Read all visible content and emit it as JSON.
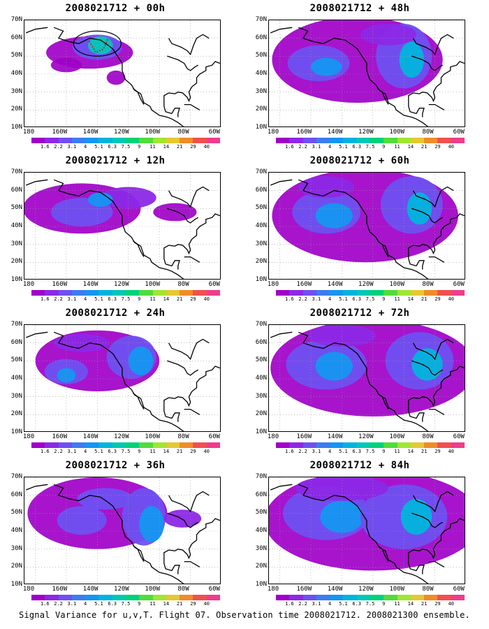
{
  "caption": "Signal Variance for u,v,T. Flight 07. Observation time 2008021712. 2008021300 ensemble.",
  "y_labels": [
    "70N",
    "60N",
    "50N",
    "40N",
    "30N",
    "20N",
    "10N"
  ],
  "x_labels": [
    "180",
    "160W",
    "140W",
    "120W",
    "100W",
    "80W",
    "60W"
  ],
  "colorbar_levels": [
    "1.6",
    "2.2",
    "3.1",
    "4",
    "5.1",
    "6.3",
    "7.5",
    "9",
    "11",
    "14",
    "21",
    "29",
    "40"
  ],
  "colorbar_colors": [
    "#a000c8",
    "#8c28e6",
    "#6e50f0",
    "#3c7cf0",
    "#1496f0",
    "#00b4dc",
    "#00c8b4",
    "#00d278",
    "#50dc3c",
    "#a0e632",
    "#e6c832",
    "#f08c28",
    "#f05050",
    "#f03c8c"
  ],
  "map_style": {
    "grid": "dotted",
    "coastlines": true
  },
  "panels": [
    {
      "title": "2008021712 + 00h",
      "forecast_hour": 0,
      "column": "left",
      "intensity": 0.2,
      "has_flight_circle": true
    },
    {
      "title": "2008021712 + 12h",
      "forecast_hour": 12,
      "column": "left",
      "intensity": 0.35,
      "has_flight_circle": false
    },
    {
      "title": "2008021712 + 24h",
      "forecast_hour": 24,
      "column": "left",
      "intensity": 0.5,
      "has_flight_circle": false
    },
    {
      "title": "2008021712 + 36h",
      "forecast_hour": 36,
      "column": "left",
      "intensity": 0.6,
      "has_flight_circle": false
    },
    {
      "title": "2008021712 + 48h",
      "forecast_hour": 48,
      "column": "right",
      "intensity": 0.7,
      "has_flight_circle": false
    },
    {
      "title": "2008021712 + 60h",
      "forecast_hour": 60,
      "column": "right",
      "intensity": 0.8,
      "has_flight_circle": false
    },
    {
      "title": "2008021712 + 72h",
      "forecast_hour": 72,
      "column": "right",
      "intensity": 0.9,
      "has_flight_circle": false
    },
    {
      "title": "2008021712 + 84h",
      "forecast_hour": 84,
      "column": "right",
      "intensity": 1.0,
      "has_flight_circle": false
    }
  ]
}
